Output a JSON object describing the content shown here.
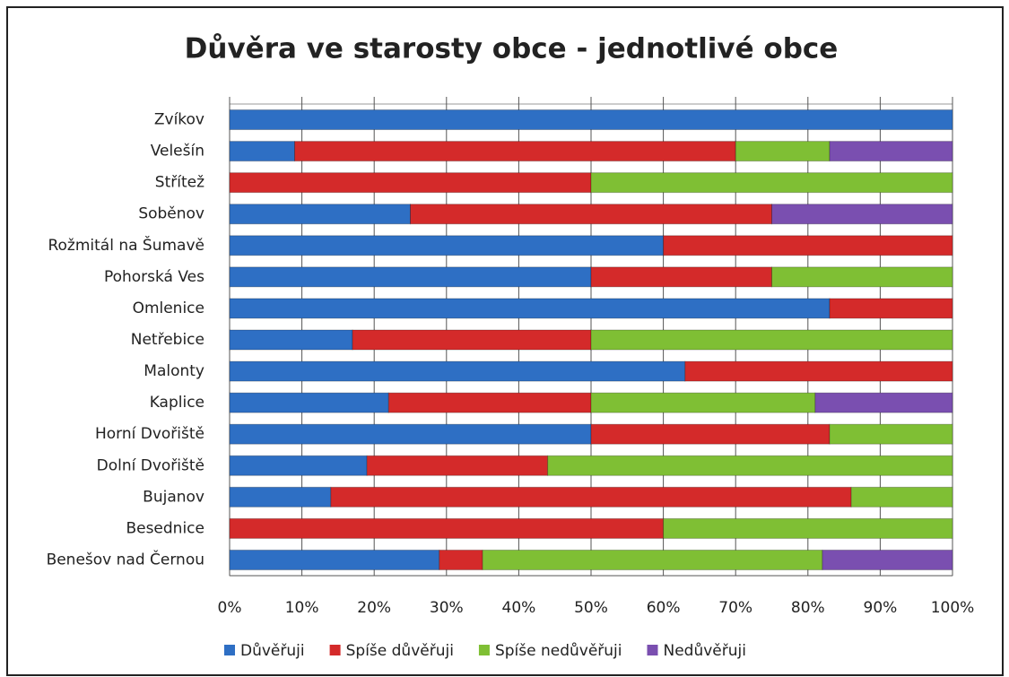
{
  "chart_data": {
    "type": "bar",
    "orientation": "horizontal",
    "stacked": true,
    "title": "Důvěra ve starosty obce - jednotlivé obce",
    "categories": [
      "Zvíkov",
      "Velešín",
      "Střítež",
      "Soběnov",
      "Rožmitál na Šumavě",
      "Pohorská Ves",
      "Omlenice",
      "Netřebice",
      "Malonty",
      "Kaplice",
      "Horní Dvořiště",
      "Dolní Dvořiště",
      "Bujanov",
      "Besednice",
      "Benešov nad Černou"
    ],
    "series": [
      {
        "name": "Důvěřuji",
        "color": "#2e6fc4",
        "values": [
          100,
          9,
          0,
          25,
          60,
          50,
          83,
          17,
          63,
          22,
          50,
          19,
          14,
          0,
          29
        ]
      },
      {
        "name": "Spíše důvěřuji",
        "color": "#d42a2a",
        "values": [
          0,
          61,
          50,
          50,
          40,
          25,
          17,
          33,
          37,
          28,
          33,
          25,
          72,
          60,
          6
        ]
      },
      {
        "name": "Spíše nedůvěřuji",
        "color": "#7fbf34",
        "values": [
          0,
          13,
          50,
          0,
          0,
          25,
          0,
          50,
          0,
          31,
          17,
          56,
          14,
          40,
          47
        ]
      },
      {
        "name": "Nedůvěřuji",
        "color": "#7a4fb0",
        "values": [
          0,
          17,
          0,
          25,
          0,
          0,
          0,
          0,
          0,
          19,
          0,
          0,
          0,
          0,
          18
        ]
      }
    ],
    "xlim": [
      0,
      100
    ],
    "xticks": [
      {
        "value": 0,
        "label": "0%"
      },
      {
        "value": 10,
        "label": "10%"
      },
      {
        "value": 20,
        "label": "20%"
      },
      {
        "value": 30,
        "label": "30%"
      },
      {
        "value": 40,
        "label": "40%"
      },
      {
        "value": 50,
        "label": "50%"
      },
      {
        "value": 60,
        "label": "60%"
      },
      {
        "value": 70,
        "label": "70%"
      },
      {
        "value": 80,
        "label": "80%"
      },
      {
        "value": 90,
        "label": "90%"
      },
      {
        "value": 100,
        "label": "100%"
      }
    ],
    "grid": true,
    "legend": "bottom"
  }
}
